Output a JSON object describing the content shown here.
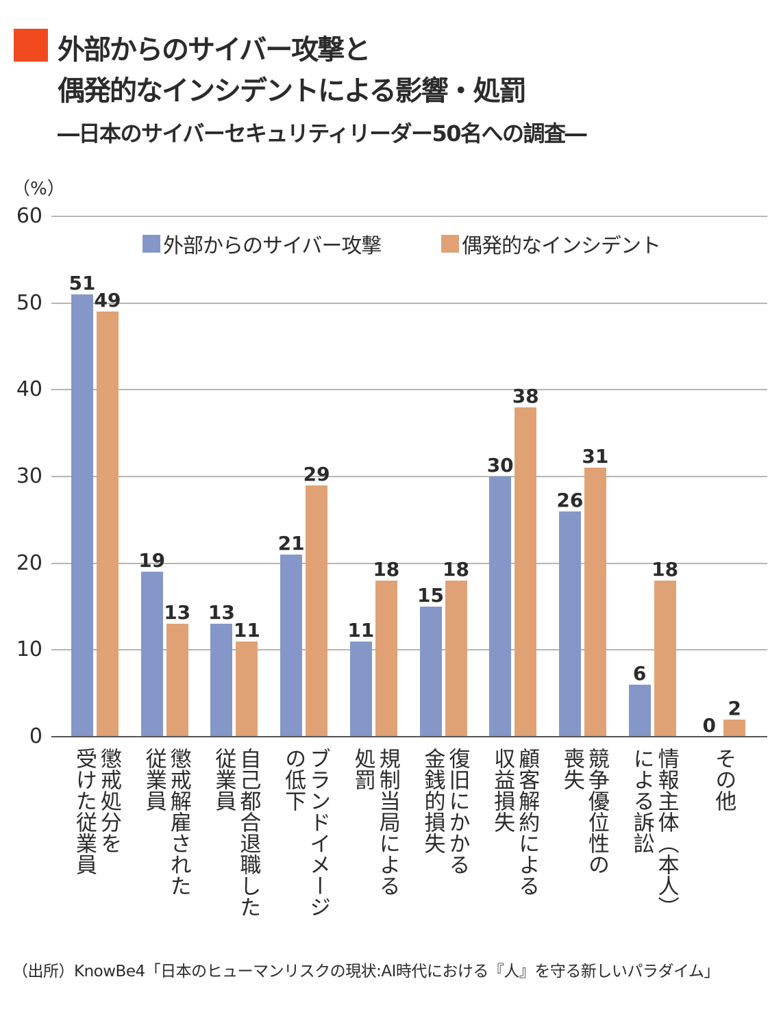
{
  "title_lines": [
    "外部からのサイバー攻撃と",
    "偶発的なインシデントによる影響・処罰"
  ],
  "subtitle": "―日本のサイバーセキュリティリーダー50名への調査―",
  "source": "（出所）KnowBe4「日本のヒューマンリスクの現状:AI時代における『人』を守る新しいパラダイム」",
  "colors": {
    "title_mark": "#f04a1e",
    "external": "#8497c8",
    "accidental": "#e0a275",
    "grid": "#b5b5b5"
  },
  "chart_data": {
    "type": "bar",
    "ylabel": "（%）",
    "ylim": [
      0,
      60
    ],
    "yticks": [
      0,
      10,
      20,
      30,
      40,
      50,
      60
    ],
    "grid": true,
    "legend_placement": "top",
    "categories": [
      "懲戒処分を\n受けた従業員",
      "懲戒解雇された\n従業員",
      "自己都合退職した\n従業員",
      "ブランドイメージ\nの低下",
      "規制当局による\n処罰",
      "復旧にかかる\n金銭的損失",
      "顧客解約による\n収益損失",
      "競争優位性の\n喪失",
      "情報主体（本人）\nによる訴訟",
      "その他"
    ],
    "series": [
      {
        "name": "外部からのサイバー攻撃",
        "values": [
          51,
          19,
          13,
          21,
          11,
          15,
          30,
          26,
          6,
          0
        ]
      },
      {
        "name": "偶発的なインシデント",
        "values": [
          49,
          13,
          11,
          29,
          18,
          18,
          38,
          31,
          18,
          2
        ]
      }
    ]
  }
}
